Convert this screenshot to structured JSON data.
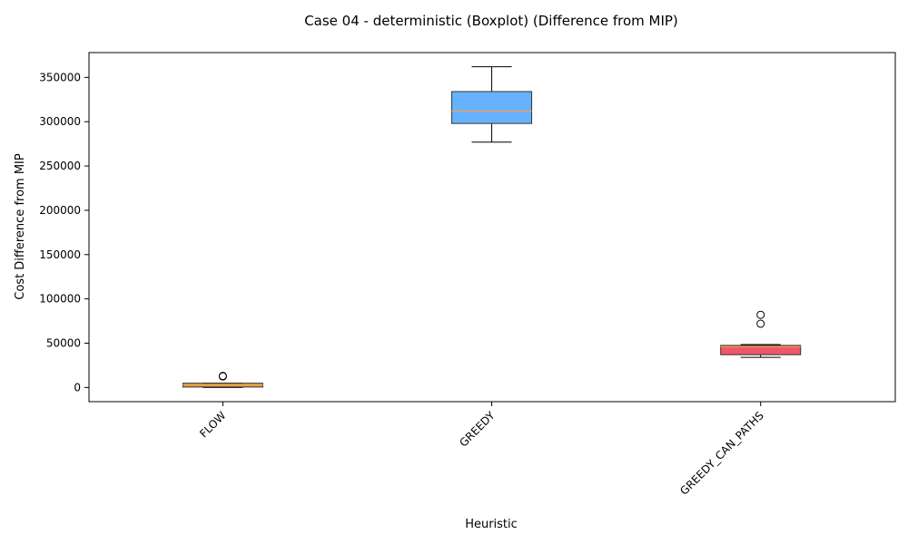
{
  "chart_data": {
    "type": "boxplot",
    "title": "Case 04 - deterministic (Boxplot) (Difference from MIP)",
    "xlabel": "Heuristic",
    "ylabel": "Cost Difference from MIP",
    "ylim": [
      -16000,
      378000
    ],
    "yticks": [
      0,
      50000,
      100000,
      150000,
      200000,
      250000,
      300000,
      350000
    ],
    "ytick_labels": [
      "0",
      "50000",
      "100000",
      "150000",
      "200000",
      "250000",
      "300000",
      "350000"
    ],
    "grid": false,
    "categories": [
      "FLOW",
      "GREEDY",
      "GREEDY_CAN_PATHS"
    ],
    "series": [
      {
        "color": "#e0a040",
        "whisker_low": 0,
        "q1": 500,
        "median": 3000,
        "q3": 4800,
        "whisker_high": 4800,
        "outliers": [
          12500,
          13000
        ]
      },
      {
        "color": "#66b2ff",
        "whisker_low": 277000,
        "q1": 298000,
        "median": 312000,
        "q3": 334000,
        "whisker_high": 362000,
        "outliers": []
      },
      {
        "color": "#f0566a",
        "whisker_low": 34000,
        "q1": 37000,
        "median": 46000,
        "q3": 47500,
        "whisker_high": 48500,
        "outliers": [
          72000,
          82000
        ]
      }
    ]
  }
}
